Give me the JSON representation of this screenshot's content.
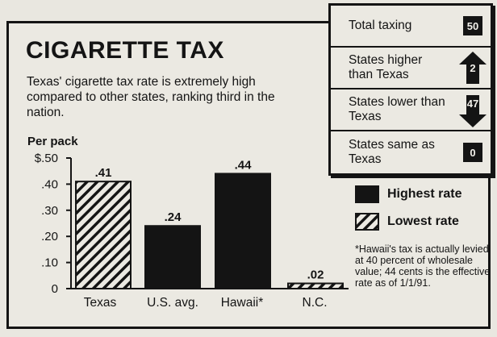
{
  "chart_data": {
    "type": "bar",
    "title": "CIGARETTE TAX",
    "subtitle": "Texas' cigarette tax rate is extremely high compared to other states, ranking third in the nation.",
    "ylabel": "Per pack",
    "ylim": [
      0,
      0.5
    ],
    "ytick_labels": [
      "$.50",
      ".40",
      ".30",
      ".20",
      ".10",
      "0"
    ],
    "ytick_values": [
      0.5,
      0.4,
      0.3,
      0.2,
      0.1,
      0
    ],
    "categories": [
      "Texas",
      "U.S. avg.",
      "Hawaii*",
      "N.C."
    ],
    "values": [
      0.41,
      0.24,
      0.44,
      0.02
    ],
    "value_labels": [
      ".41",
      ".24",
      ".44",
      ".02"
    ],
    "bar_styles": [
      "hatched",
      "solid",
      "solid",
      "hatched"
    ],
    "grid": false
  },
  "stats": [
    {
      "label": "Total taxing",
      "value": "50"
    },
    {
      "label": "States higher than Texas",
      "value": "2",
      "icon": "arrow-up-icon"
    },
    {
      "label": "States lower than Texas",
      "value": "47",
      "icon": "arrow-down-icon"
    },
    {
      "label": "States same as Texas",
      "value": "0"
    }
  ],
  "legend": {
    "highest": "Highest rate",
    "lowest": "Lowest rate"
  },
  "footnote": "*Hawaii's tax is actually levied at 40 percent of wholesale value; 44 cents is the effective rate as of 1/1/91.",
  "colors": {
    "ink": "#141414",
    "paper": "#ebe9e2"
  }
}
